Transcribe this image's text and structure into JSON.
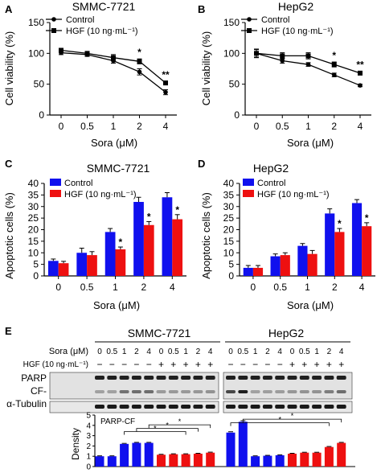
{
  "colors": {
    "control": "#1010ee",
    "hgf": "#ee1010",
    "line": "#000000"
  },
  "panels": {
    "A": {
      "letter": "A",
      "title": "SMMC-7721",
      "ylabel": "Cell viability (%)",
      "xlabel": "Sora (μM)",
      "legend": [
        "Control",
        "HGF (10 ng·mL⁻¹)"
      ],
      "categories": [
        "0",
        "0.5",
        "1",
        "2",
        "4"
      ],
      "yticks": [
        0,
        50,
        100,
        150
      ],
      "sig": [
        {
          "index": 3,
          "text": "*"
        },
        {
          "index": 4,
          "text": "**"
        }
      ]
    },
    "B": {
      "letter": "B",
      "title": "HepG2",
      "ylabel": "Cell viability (%)",
      "xlabel": "Sora (μM)",
      "legend": [
        "Control",
        "HGF (10 ng·mL⁻¹)"
      ],
      "categories": [
        "0",
        "0.5",
        "1",
        "2",
        "4"
      ],
      "yticks": [
        0,
        50,
        100,
        150
      ],
      "sig": [
        {
          "index": 3,
          "text": "*"
        },
        {
          "index": 4,
          "text": "**"
        }
      ]
    },
    "C": {
      "letter": "C",
      "title": "SMMC-7721",
      "ylabel": "Apoptotic cells (%)",
      "xlabel": "Sora (μM)",
      "legend": [
        "Control",
        "HGF (10 ng·mL⁻¹)"
      ],
      "categories": [
        "0",
        "0.5",
        "1",
        "2",
        "4"
      ],
      "yticks": [
        0,
        5,
        10,
        15,
        20,
        25,
        30,
        35,
        40
      ],
      "sig": [
        {
          "index": 2,
          "text": "*"
        },
        {
          "index": 3,
          "text": "*"
        },
        {
          "index": 4,
          "text": "*"
        }
      ]
    },
    "D": {
      "letter": "D",
      "title": "HepG2",
      "ylabel": "Apoptotic cells (%)",
      "xlabel": "Sora (μM)",
      "legend": [
        "Control",
        "HGF (10 ng·mL⁻¹)"
      ],
      "categories": [
        "0",
        "0.5",
        "1",
        "2",
        "4"
      ],
      "yticks": [
        0,
        5,
        10,
        15,
        20,
        25,
        30,
        35,
        40
      ],
      "sig": [
        {
          "index": 3,
          "text": "*"
        },
        {
          "index": 4,
          "text": "*"
        }
      ]
    },
    "E": {
      "letter": "E",
      "cell_lines": [
        "SMMC-7721",
        "HepG2"
      ],
      "row_sora_label": "Sora (μM)",
      "row_hgf_label": "HGF (10 ng·mL⁻¹)",
      "sora_values": [
        "0",
        "0.5",
        "1",
        "2",
        "4",
        "0",
        "0.5",
        "1",
        "2",
        "4",
        "0",
        "0.5",
        "1",
        "2",
        "4",
        "0",
        "0.5",
        "1",
        "2",
        "4"
      ],
      "hgf_values": [
        "−",
        "−",
        "−",
        "−",
        "−",
        "+",
        "+",
        "+",
        "+",
        "+",
        "−",
        "−",
        "−",
        "−",
        "−",
        "+",
        "+",
        "+",
        "+",
        "+"
      ],
      "blot_labels": [
        "PARP",
        "CF-",
        "α-Tubulin"
      ],
      "density_ylabel": "Density",
      "density_title": "PARP-CF",
      "density_yticks": [
        0,
        1,
        2,
        3,
        4,
        5
      ],
      "sig_marks": [
        "*",
        "*",
        "*",
        "*",
        "*"
      ]
    }
  },
  "chart_data": [
    {
      "type": "line",
      "title": "SMMC-7721",
      "xlabel": "Sora (μM)",
      "ylabel": "Cell viability (%)",
      "categories": [
        "0",
        "0.5",
        "1",
        "2",
        "4"
      ],
      "ylim": [
        0,
        150
      ],
      "series": [
        {
          "name": "Control",
          "values": [
            101,
            98,
            88,
            70,
            37
          ],
          "errors": [
            3,
            3,
            4,
            5,
            4
          ]
        },
        {
          "name": "HGF (10 ng·mL⁻¹)",
          "values": [
            105,
            100,
            93,
            87,
            52
          ],
          "errors": [
            3,
            3,
            5,
            4,
            3
          ]
        }
      ]
    },
    {
      "type": "line",
      "title": "HepG2",
      "xlabel": "Sora (μM)",
      "ylabel": "Cell viability (%)",
      "categories": [
        "0",
        "0.5",
        "1",
        "2",
        "4"
      ],
      "ylim": [
        0,
        150
      ],
      "series": [
        {
          "name": "Control",
          "values": [
            100,
            88,
            82,
            65,
            48
          ],
          "errors": [
            6,
            4,
            3,
            3,
            2
          ]
        },
        {
          "name": "HGF (10 ng·mL⁻¹)",
          "values": [
            100,
            96,
            96,
            82,
            68
          ],
          "errors": [
            7,
            5,
            5,
            4,
            3
          ]
        }
      ]
    },
    {
      "type": "bar",
      "title": "SMMC-7721",
      "xlabel": "Sora (μM)",
      "ylabel": "Apoptotic cells (%)",
      "categories": [
        "0",
        "0.5",
        "1",
        "2",
        "4"
      ],
      "ylim": [
        0,
        40
      ],
      "series": [
        {
          "name": "Control",
          "values": [
            6.5,
            10,
            19,
            32,
            34
          ],
          "errors": [
            0.8,
            2,
            1.5,
            2,
            2
          ]
        },
        {
          "name": "HGF (10 ng·mL⁻¹)",
          "values": [
            5.5,
            9,
            11.5,
            22,
            24.5
          ],
          "errors": [
            0.8,
            1.5,
            1,
            1.5,
            2
          ]
        }
      ]
    },
    {
      "type": "bar",
      "title": "HepG2",
      "xlabel": "Sora (μM)",
      "ylabel": "Apoptotic cells (%)",
      "categories": [
        "0",
        "0.5",
        "1",
        "2",
        "4"
      ],
      "ylim": [
        0,
        40
      ],
      "series": [
        {
          "name": "Control",
          "values": [
            3.5,
            8.5,
            13,
            27,
            31.5
          ],
          "errors": [
            1,
            1,
            1,
            2,
            1.5
          ]
        },
        {
          "name": "HGF (10 ng·mL⁻¹)",
          "values": [
            3.5,
            9,
            9.5,
            19,
            21.5
          ],
          "errors": [
            1,
            1,
            1.5,
            1.5,
            1.5
          ]
        }
      ]
    },
    {
      "type": "bar",
      "title": "PARP-CF",
      "xlabel": "",
      "ylabel": "Density",
      "categories": [
        "0",
        "0.5",
        "1",
        "2",
        "4",
        "0",
        "0.5",
        "1",
        "2",
        "4",
        "0",
        "0.5",
        "1",
        "2",
        "4",
        "0",
        "0.5",
        "1",
        "2",
        "4"
      ],
      "ylim": [
        0,
        5
      ],
      "groups": [
        "SMMC-7721",
        "SMMC-7721",
        "SMMC-7721",
        "SMMC-7721",
        "SMMC-7721",
        "SMMC-7721",
        "SMMC-7721",
        "SMMC-7721",
        "SMMC-7721",
        "SMMC-7721",
        "HepG2",
        "HepG2",
        "HepG2",
        "HepG2",
        "HepG2",
        "HepG2",
        "HepG2",
        "HepG2",
        "HepG2",
        "HepG2"
      ],
      "hgf": [
        "−",
        "−",
        "−",
        "−",
        "−",
        "+",
        "+",
        "+",
        "+",
        "+",
        "−",
        "−",
        "−",
        "−",
        "−",
        "+",
        "+",
        "+",
        "+",
        "+"
      ],
      "values": [
        1.0,
        1.0,
        2.2,
        2.3,
        2.3,
        1.15,
        1.2,
        1.2,
        1.25,
        1.35,
        3.3,
        4.35,
        1.0,
        1.05,
        1.1,
        1.25,
        1.35,
        1.35,
        1.9,
        2.3
      ],
      "errors": [
        0.04,
        0.04,
        0.05,
        0.05,
        0.05,
        0.04,
        0.04,
        0.04,
        0.04,
        0.05,
        0.08,
        0.1,
        0.04,
        0.04,
        0.04,
        0.04,
        0.04,
        0.04,
        0.05,
        0.05
      ]
    }
  ]
}
